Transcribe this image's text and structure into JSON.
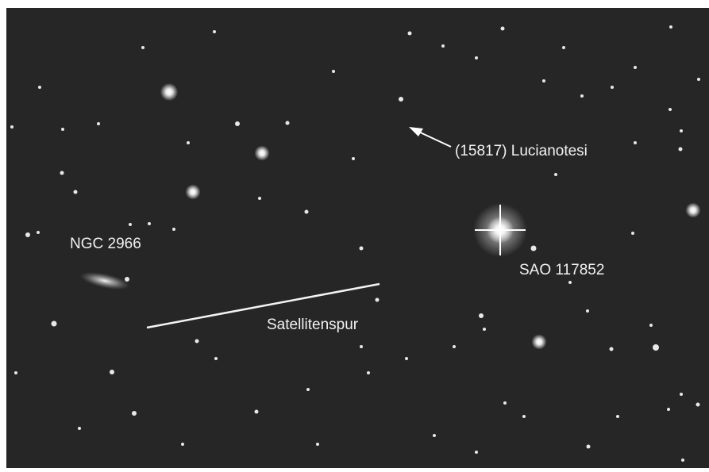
{
  "labels": {
    "asteroid": "(15817) Lucianotesi",
    "galaxy": "NGC 2966",
    "bright_star": "SAO 117852",
    "satellite_trail": "Satellitenspur"
  }
}
